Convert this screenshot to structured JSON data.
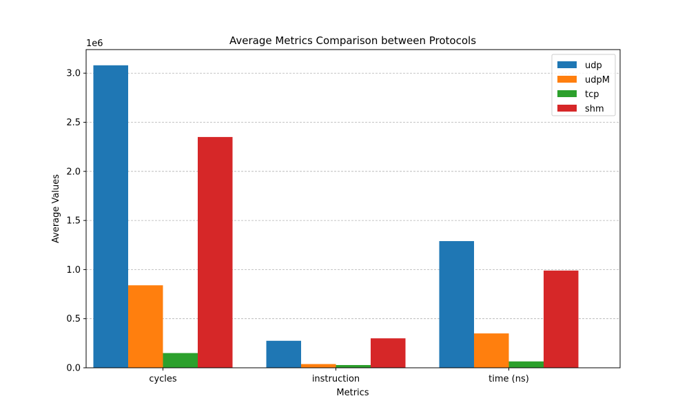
{
  "chart_data": {
    "type": "bar",
    "title": "Average Metrics Comparison between Protocols",
    "xlabel": "Metrics",
    "ylabel": "Average Values",
    "y_offset_label": "1e6",
    "y_scale": 1000000,
    "ylim": [
      0,
      3240000
    ],
    "yticks": [
      0,
      500000,
      1000000,
      1500000,
      2000000,
      2500000,
      3000000
    ],
    "ytick_labels": [
      "0.0",
      "0.5",
      "1.0",
      "1.5",
      "2.0",
      "2.5",
      "3.0"
    ],
    "categories": [
      "cycles",
      "instruction",
      "time (ns)"
    ],
    "series": [
      {
        "name": "udp",
        "color": "#1f77b4",
        "values": [
          3080000,
          275000,
          1290000
        ]
      },
      {
        "name": "udpM",
        "color": "#ff7f0e",
        "values": [
          840000,
          38000,
          350000
        ]
      },
      {
        "name": "tcp",
        "color": "#2ca02c",
        "values": [
          150000,
          28000,
          65000
        ]
      },
      {
        "name": "shm",
        "color": "#d62728",
        "values": [
          2350000,
          300000,
          990000
        ]
      }
    ],
    "grid": "y-dashed",
    "legend_position": "top-right"
  }
}
